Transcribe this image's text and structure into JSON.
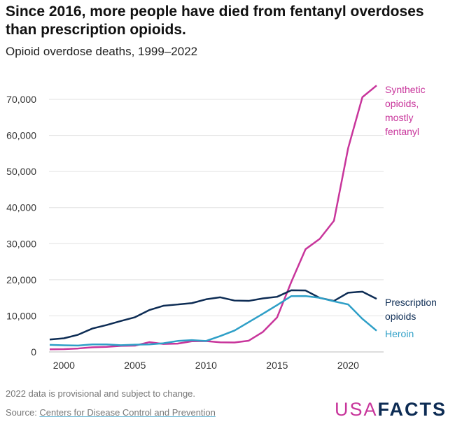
{
  "title": "Since 2016, more people have died from fentanyl overdoses than prescription opioids.",
  "subtitle": "Opioid overdose deaths, 1999–2022",
  "note": "2022 data is provisional and subject to change.",
  "source_prefix": "Source: ",
  "source_link": "Centers for Disease Control and Prevention",
  "logo": {
    "usa": "USA",
    "facts": "FACTS"
  },
  "chart_data": {
    "type": "line",
    "title": "Since 2016, more people have died from fentanyl overdoses than prescription opioids.",
    "subtitle": "Opioid overdose deaths, 1999–2022",
    "x": [
      1999,
      2000,
      2001,
      2002,
      2003,
      2004,
      2005,
      2006,
      2007,
      2008,
      2009,
      2010,
      2011,
      2012,
      2013,
      2014,
      2015,
      2016,
      2017,
      2018,
      2019,
      2020,
      2021,
      2022
    ],
    "xlim": [
      1999,
      2022
    ],
    "ylim": [
      0,
      70000
    ],
    "xticks": [
      2000,
      2005,
      2010,
      2015,
      2020
    ],
    "yticks": [
      0,
      10000,
      20000,
      30000,
      40000,
      50000,
      60000,
      70000
    ],
    "ytick_labels": [
      "0",
      "10,000",
      "20,000",
      "30,000",
      "40,000",
      "50,000",
      "60,000",
      "70,000"
    ],
    "grid": "horizontal",
    "legend": "direct labels at right end of lines",
    "series": [
      {
        "name": "Synthetic opioids, mostly fentanyl",
        "label_lines": [
          "Synthetic",
          "opioids,",
          "mostly",
          "fentanyl"
        ],
        "color": "#c8359b",
        "values": [
          730,
          782,
          957,
          1295,
          1400,
          1664,
          1742,
          2707,
          2213,
          2306,
          2946,
          3007,
          2666,
          2628,
          3105,
          5544,
          9580,
          19413,
          28466,
          31335,
          36359,
          56516,
          70601,
          73838
        ]
      },
      {
        "name": "Prescription opioids",
        "label_lines": [
          "Prescription",
          "opioids"
        ],
        "color": "#0d2c54",
        "values": [
          3442,
          3785,
          4770,
          6483,
          7456,
          8577,
          9612,
          11589,
          12796,
          13149,
          13523,
          14583,
          15140,
          14240,
          14145,
          14838,
          15281,
          17087,
          17029,
          14975,
          14139,
          16416,
          16706,
          14716
        ]
      },
      {
        "name": "Heroin",
        "label_lines": [
          "Heroin"
        ],
        "color": "#2e9fc7",
        "values": [
          1960,
          1842,
          1779,
          2089,
          2080,
          1878,
          2009,
          2088,
          2399,
          3041,
          3278,
          3036,
          4397,
          5925,
          8257,
          10574,
          12989,
          15469,
          15482,
          14996,
          14019,
          13165,
          9173,
          5871
        ]
      }
    ]
  }
}
